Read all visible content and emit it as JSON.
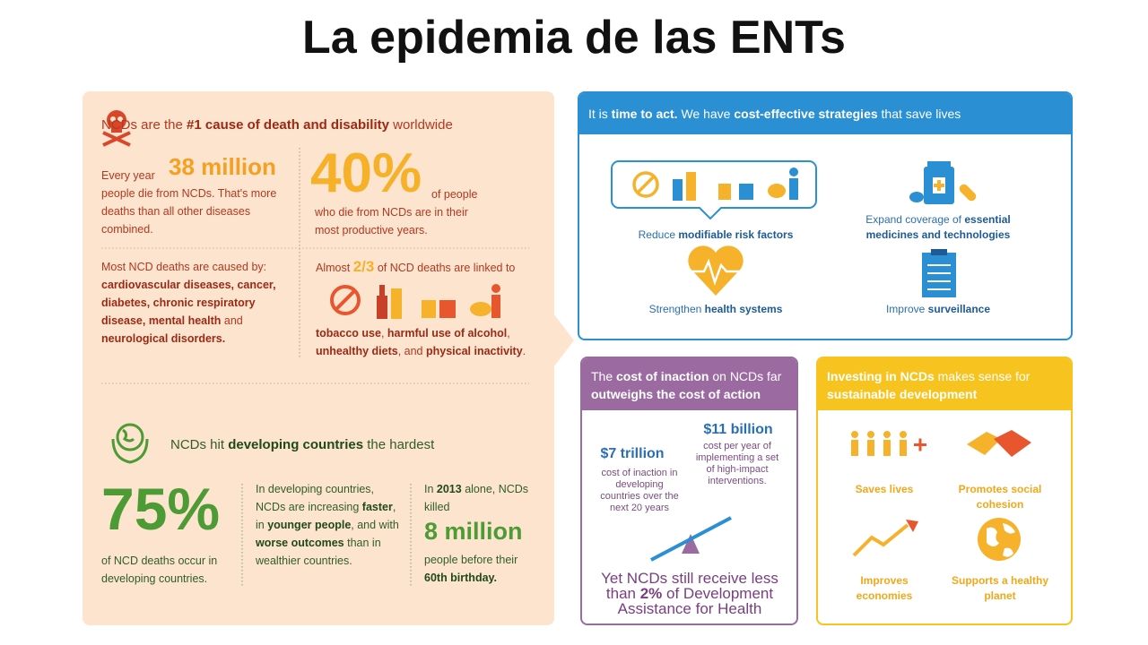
{
  "title": "La epidemia de las ENTs",
  "burden": {
    "headline": [
      "NCDs are the ",
      {
        "text": "#1 cause of death and disability",
        "bold": true
      },
      " worldwide"
    ],
    "deaths": {
      "lead": "Every year",
      "number": "38 million",
      "text": "people die from NCDs. That's more deaths than all other diseases combined."
    },
    "productive": {
      "number": "40%",
      "suffix": "of people",
      "text": "who die from NCDs are in their most productive years."
    },
    "causes": [
      "Most NCD deaths are caused by: ",
      {
        "text": "cardiovascular diseases, cancer, diabetes, chronic respiratory disease, mental health",
        "bold": true
      },
      " and ",
      {
        "text": "neurological disorders.",
        "bold": true
      }
    ],
    "linked": {
      "lead": "Almost",
      "fraction": "2/3",
      "text": "of NCD deaths are linked to",
      "factors": [
        {
          "text": "tobacco use",
          "bold": true
        },
        ", ",
        {
          "text": "harmful use of alcohol",
          "bold": true
        },
        ", ",
        {
          "text": "unhealthy diets",
          "bold": true
        },
        ", and ",
        {
          "text": "physical inactivity",
          "bold": true
        },
        "."
      ]
    }
  },
  "developing": {
    "headline": [
      "NCDs hit ",
      {
        "text": "developing countries",
        "bold": true
      },
      " the hardest"
    ],
    "share": {
      "number": "75%",
      "text": "of NCD deaths occur in developing countries."
    },
    "trend": [
      "In developing countries, NCDs are increasing ",
      {
        "text": "faster",
        "bold": true
      },
      ", in ",
      {
        "text": "younger people",
        "bold": true
      },
      ", and with ",
      {
        "text": "worse outcomes",
        "bold": true
      },
      " than in wealthier countries."
    ],
    "killed": {
      "lead": [
        "In ",
        {
          "text": "2013",
          "bold": true
        },
        " alone, NCDs killed"
      ],
      "number": "8 million",
      "text": [
        "people before their ",
        {
          "text": "60th birthday.",
          "bold": true
        }
      ]
    }
  },
  "act": {
    "header": [
      "It is ",
      {
        "text": "time to act.",
        "bold": true
      },
      " We have ",
      {
        "text": "cost-effective strategies",
        "bold": true
      },
      " that save lives"
    ],
    "risk": [
      "Reduce ",
      {
        "text": "modifiable risk factors",
        "bold": true
      }
    ],
    "medicines": [
      "Expand coverage of ",
      {
        "text": "essential medicines and technologies",
        "bold": true
      }
    ],
    "systems": [
      "Strengthen ",
      {
        "text": "health systems",
        "bold": true
      }
    ],
    "surveillance": [
      "Improve ",
      {
        "text": "surveillance",
        "bold": true
      }
    ]
  },
  "inaction": {
    "header": [
      "The ",
      {
        "text": "cost of inaction",
        "bold": true
      },
      " on NCDs far ",
      {
        "text": "outweighs the cost of action",
        "bold": true
      }
    ],
    "inaction_cost": {
      "number": "$7 trillion",
      "text": "cost of inaction in developing countries over the next 20 years"
    },
    "action_cost": {
      "number": "$11 billion",
      "text": "cost per year of implementing a set of high-impact interventions."
    },
    "footer": [
      "Yet NCDs still receive less than ",
      {
        "text": "2%",
        "bold": true
      },
      " of Development Assistance for Health"
    ]
  },
  "investing": {
    "header": [
      {
        "text": "Investing in NCDs",
        "bold": true
      },
      " makes sense for ",
      {
        "text": "sustainable development",
        "bold": true
      }
    ],
    "benefits": [
      "Saves lives",
      "Promotes social cohesion",
      "Improves economies",
      "Supports a healthy planet"
    ]
  }
}
